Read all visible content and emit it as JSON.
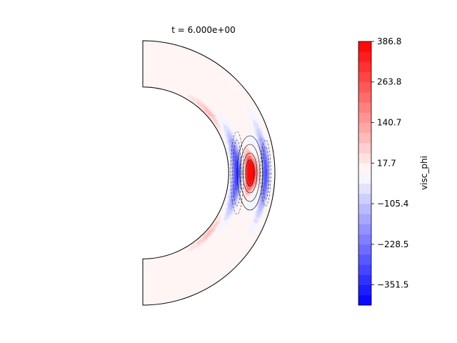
{
  "chart_data": {
    "type": "heatmap",
    "subtype": "filled contour on meridional half-annulus",
    "title": "t = 6.000e+00",
    "colorbar": {
      "label": "visc_phi",
      "min": -413.1,
      "max": 386.8,
      "levels": 26,
      "ticks": [
        386.8,
        263.8,
        140.7,
        17.7,
        -105.4,
        -228.5,
        -351.5
      ],
      "tick_labels": [
        "386.8",
        "263.8",
        "140.7",
        "17.7",
        "−105.4",
        "−228.5",
        "−351.5"
      ],
      "colormap": "bwr",
      "colors": {
        "low": "#0000ff",
        "mid": "#ffffff",
        "high": "#ff0000"
      }
    },
    "shell": {
      "inner_radius_ratio": 0.65,
      "outer_radius": 1.0,
      "theta_range_deg": [
        0,
        180
      ]
    },
    "features": [
      {
        "kind": "positive",
        "region": "equatorial band at mid-radius",
        "peak": 386.8
      },
      {
        "kind": "negative",
        "region": "equatorial band, inner and outer flanks",
        "peak": -413.1
      },
      {
        "kind": "positive",
        "region": "weak patches near inner boundary at mid-latitudes"
      }
    ]
  }
}
